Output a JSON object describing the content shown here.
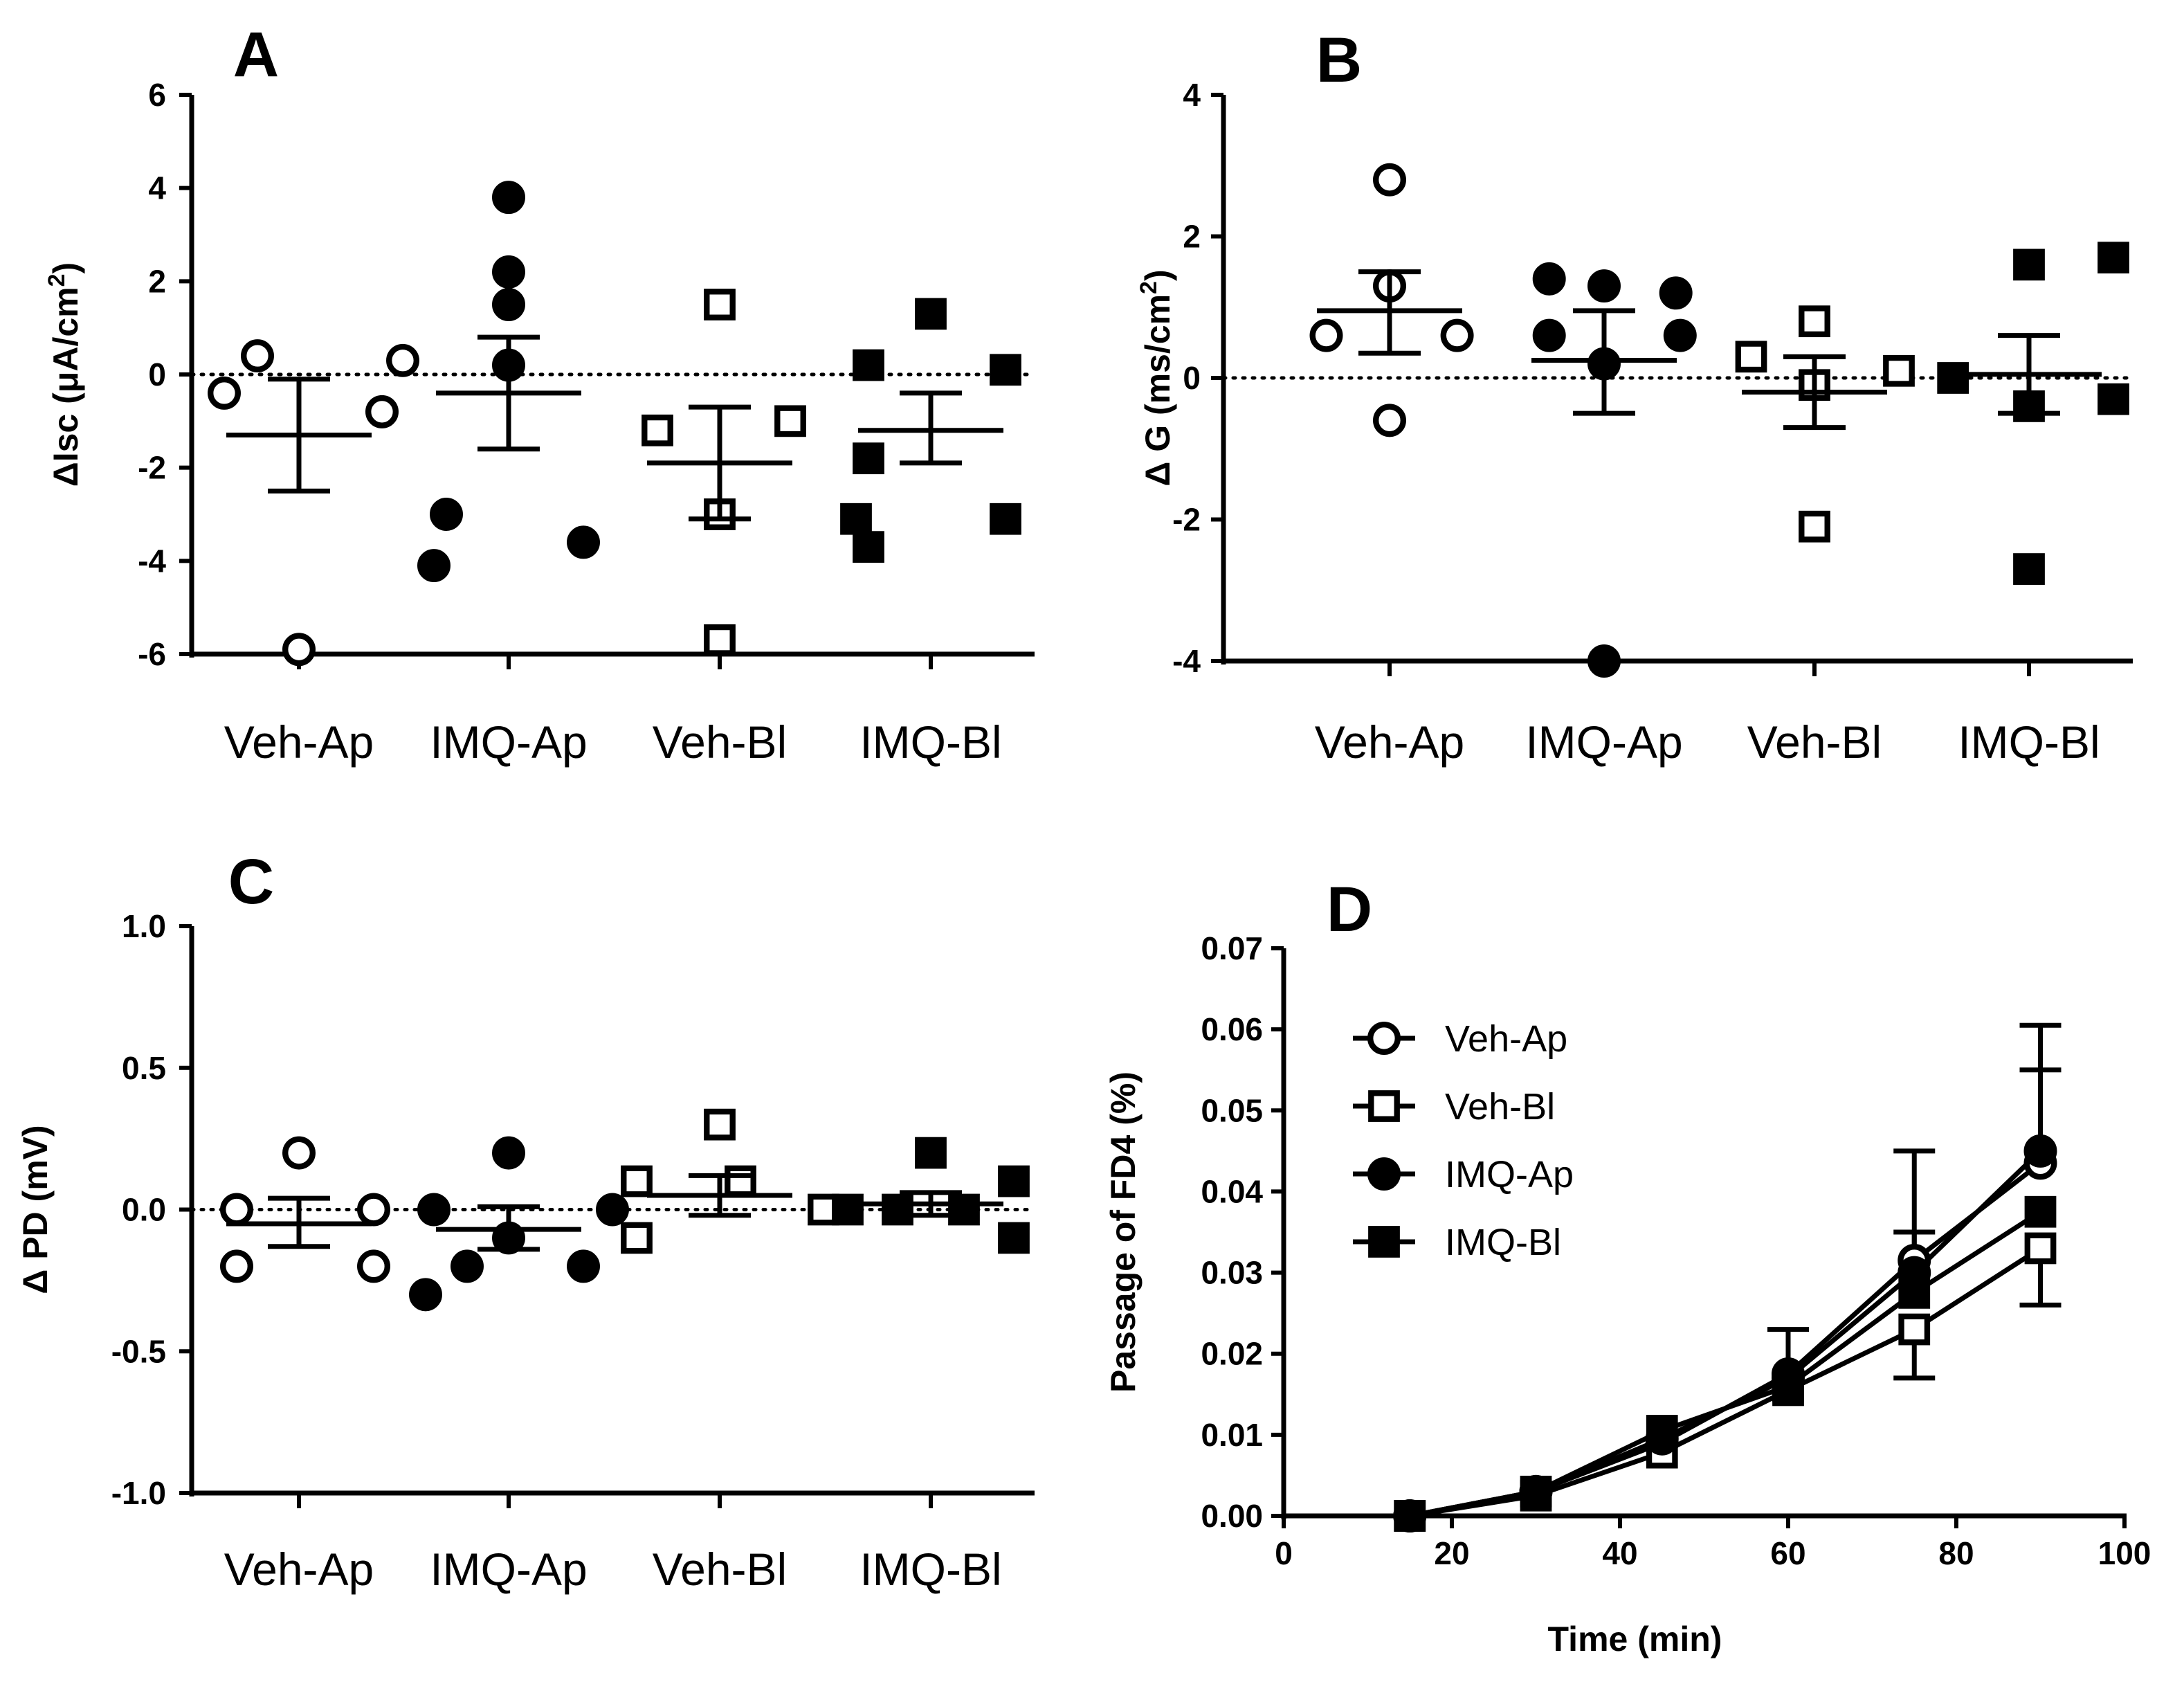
{
  "colors": {
    "ink": "#000000",
    "paper": "#ffffff"
  },
  "chart_data": [
    {
      "panel": "A",
      "type": "scatter",
      "ylabel": "ΔIsc (μA/cm2)",
      "ylim": [
        -6,
        6
      ],
      "yticks": [
        {
          "value": 6,
          "label": "6"
        },
        {
          "value": 4,
          "label": "4"
        },
        {
          "value": 2,
          "label": "2"
        },
        {
          "value": 0,
          "label": "0"
        },
        {
          "value": -2,
          "label": "-2"
        },
        {
          "value": -4,
          "label": "-4"
        },
        {
          "value": -6,
          "label": "-6"
        }
      ],
      "categories": [
        "Veh-Ap",
        "IMQ-Ap",
        "Veh-Bl",
        "IMQ-Bl"
      ],
      "groups": [
        {
          "name": "Veh-Ap",
          "marker": "open-circle",
          "points": [
            [
              -0.1,
              0.4
            ],
            [
              0.25,
              0.3
            ],
            [
              -0.18,
              -0.4
            ],
            [
              0.2,
              -0.8
            ],
            [
              0,
              -5.9
            ]
          ],
          "mean": -1.3,
          "sem_low": -2.5,
          "sem_high": -0.1
        },
        {
          "name": "IMQ-Ap",
          "marker": "filled-circle",
          "points": [
            [
              0,
              3.8
            ],
            [
              0,
              2.2
            ],
            [
              0,
              1.5
            ],
            [
              0,
              0.2
            ],
            [
              -0.15,
              -3.0
            ],
            [
              0.18,
              -3.6
            ],
            [
              -0.18,
              -4.1
            ]
          ],
          "mean": -0.4,
          "sem_low": -1.6,
          "sem_high": 0.8
        },
        {
          "name": "Veh-Bl",
          "marker": "open-square",
          "points": [
            [
              0,
              1.5
            ],
            [
              0.17,
              -1.0
            ],
            [
              -0.15,
              -1.2
            ],
            [
              0,
              -3.0
            ],
            [
              0,
              -5.7
            ]
          ],
          "mean": -1.9,
          "sem_low": -3.1,
          "sem_high": -0.7
        },
        {
          "name": "IMQ-Bl",
          "marker": "filled-square",
          "points": [
            [
              0,
              1.3
            ],
            [
              -0.15,
              0.2
            ],
            [
              0.18,
              0.1
            ],
            [
              -0.15,
              -1.8
            ],
            [
              -0.18,
              -3.1
            ],
            [
              0.18,
              -3.1
            ],
            [
              -0.15,
              -3.7
            ]
          ],
          "mean": -1.2,
          "sem_low": -1.9,
          "sem_high": -0.4
        }
      ]
    },
    {
      "panel": "B",
      "type": "scatter",
      "ylabel": "Δ G (ms/cm2)",
      "ylim": [
        -4,
        4
      ],
      "yticks": [
        {
          "value": 4,
          "label": "4"
        },
        {
          "value": 2,
          "label": "2"
        },
        {
          "value": 0,
          "label": "0"
        },
        {
          "value": -2,
          "label": "-2"
        },
        {
          "value": -4,
          "label": "-4"
        }
      ],
      "categories": [
        "Veh-Ap",
        "IMQ-Ap",
        "Veh-Bl",
        "IMQ-Bl"
      ],
      "groups": [
        {
          "name": "Veh-Ap",
          "marker": "open-circle",
          "points": [
            [
              0,
              2.8
            ],
            [
              0,
              1.3
            ],
            [
              -0.15,
              0.6
            ],
            [
              0.16,
              0.6
            ],
            [
              0,
              -0.6
            ]
          ],
          "mean": 0.95,
          "sem_low": 0.35,
          "sem_high": 1.5
        },
        {
          "name": "IMQ-Ap",
          "marker": "filled-circle",
          "points": [
            [
              -0.13,
              1.4
            ],
            [
              0.17,
              1.2
            ],
            [
              0,
              1.3
            ],
            [
              -0.13,
              0.6
            ],
            [
              0.18,
              0.6
            ],
            [
              0,
              0.2
            ],
            [
              0,
              -4.0
            ]
          ],
          "mean": 0.25,
          "sem_low": -0.5,
          "sem_high": 0.95
        },
        {
          "name": "Veh-Bl",
          "marker": "open-square",
          "points": [
            [
              0,
              0.8
            ],
            [
              -0.15,
              0.3
            ],
            [
              0.2,
              0.1
            ],
            [
              0,
              -0.1
            ],
            [
              0,
              -2.1
            ]
          ],
          "mean": -0.2,
          "sem_low": -0.7,
          "sem_high": 0.3
        },
        {
          "name": "IMQ-Bl",
          "marker": "filled-square",
          "points": [
            [
              0,
              1.6
            ],
            [
              0.2,
              1.7
            ],
            [
              -0.18,
              0.0
            ],
            [
              0,
              -0.4
            ],
            [
              0.2,
              -0.3
            ],
            [
              0,
              -2.7
            ]
          ],
          "mean": 0.05,
          "sem_low": -0.5,
          "sem_high": 0.6
        }
      ]
    },
    {
      "panel": "C",
      "type": "scatter",
      "ylabel": "Δ PD (mV)",
      "ylim": [
        -1,
        1
      ],
      "yticks": [
        {
          "value": 1,
          "label": "1.0"
        },
        {
          "value": 0.5,
          "label": "0.5"
        },
        {
          "value": 0,
          "label": "0.0"
        },
        {
          "value": -0.5,
          "label": "-0.5"
        },
        {
          "value": -1,
          "label": "-1.0"
        }
      ],
      "categories": [
        "Veh-Ap",
        "IMQ-Ap",
        "Veh-Bl",
        "IMQ-Bl"
      ],
      "groups": [
        {
          "name": "Veh-Ap",
          "marker": "open-circle",
          "points": [
            [
              0,
              0.2
            ],
            [
              -0.15,
              0.0
            ],
            [
              0.18,
              0.0
            ],
            [
              -0.15,
              -0.2
            ],
            [
              0.18,
              -0.2
            ]
          ],
          "mean": -0.05,
          "sem_low": -0.13,
          "sem_high": 0.04
        },
        {
          "name": "IMQ-Ap",
          "marker": "filled-circle",
          "points": [
            [
              0,
              0.2
            ],
            [
              -0.18,
              0.0
            ],
            [
              0.25,
              0.0
            ],
            [
              -0.1,
              -0.2
            ],
            [
              0.18,
              -0.2
            ],
            [
              0,
              -0.1
            ],
            [
              -0.2,
              -0.3
            ]
          ],
          "mean": -0.07,
          "sem_low": -0.14,
          "sem_high": 0.01
        },
        {
          "name": "Veh-Bl",
          "marker": "open-square",
          "points": [
            [
              0,
              0.3
            ],
            [
              -0.2,
              0.1
            ],
            [
              0.05,
              0.1
            ],
            [
              0.25,
              0.0
            ],
            [
              -0.2,
              -0.1
            ]
          ],
          "mean": 0.05,
          "sem_low": -0.02,
          "sem_high": 0.12
        },
        {
          "name": "IMQ-Bl",
          "marker": "filled-square",
          "points": [
            [
              0,
              0.2
            ],
            [
              0.2,
              0.1
            ],
            [
              -0.2,
              0.0
            ],
            [
              -0.08,
              0.0
            ],
            [
              0.08,
              0.0
            ],
            [
              0.2,
              -0.1
            ]
          ],
          "mean": 0.02,
          "sem_low": -0.02,
          "sem_high": 0.06
        }
      ]
    },
    {
      "panel": "D",
      "type": "line",
      "xlabel": "Time (min)",
      "ylabel": "Passage of FD4 (%)",
      "xlim": [
        0,
        100
      ],
      "ylim": [
        0,
        0.07
      ],
      "xticks": [
        {
          "value": 0,
          "label": "0"
        },
        {
          "value": 20,
          "label": "20"
        },
        {
          "value": 40,
          "label": "40"
        },
        {
          "value": 60,
          "label": "60"
        },
        {
          "value": 80,
          "label": "80"
        },
        {
          "value": 100,
          "label": "100"
        }
      ],
      "yticks": [
        {
          "value": 0,
          "label": "0.00"
        },
        {
          "value": 0.01,
          "label": "0.01"
        },
        {
          "value": 0.02,
          "label": "0.02"
        },
        {
          "value": 0.03,
          "label": "0.03"
        },
        {
          "value": 0.04,
          "label": "0.04"
        },
        {
          "value": 0.05,
          "label": "0.05"
        },
        {
          "value": 0.06,
          "label": "0.06"
        },
        {
          "value": 0.07,
          "label": "0.07"
        }
      ],
      "x": [
        15,
        30,
        45,
        60,
        75,
        90
      ],
      "legend_position": "top-left",
      "series": [
        {
          "name": "Veh-Ap",
          "marker": "open-circle",
          "values": [
            0.0,
            0.003,
            0.009,
            0.0175,
            0.0315,
            0.0435
          ],
          "err_high": [
            null,
            null,
            null,
            0.023,
            0.045,
            0.0605
          ]
        },
        {
          "name": "Veh-Bl",
          "marker": "open-square",
          "values": [
            0.0,
            0.0025,
            0.0078,
            0.0155,
            0.023,
            0.033
          ],
          "err_low": [
            null,
            null,
            null,
            null,
            0.017,
            0.026
          ]
        },
        {
          "name": "IMQ-Ap",
          "marker": "filled-circle",
          "values": [
            0.0,
            0.003,
            0.0095,
            0.017,
            0.03,
            0.045
          ],
          "err_high": [
            null,
            null,
            null,
            null,
            null,
            0.055
          ]
        },
        {
          "name": "IMQ-Bl",
          "marker": "filled-square",
          "values": [
            0.0,
            0.003,
            0.0105,
            0.016,
            0.0275,
            0.0375
          ],
          "err_high": [
            null,
            null,
            null,
            null,
            0.035,
            null
          ]
        }
      ]
    }
  ]
}
